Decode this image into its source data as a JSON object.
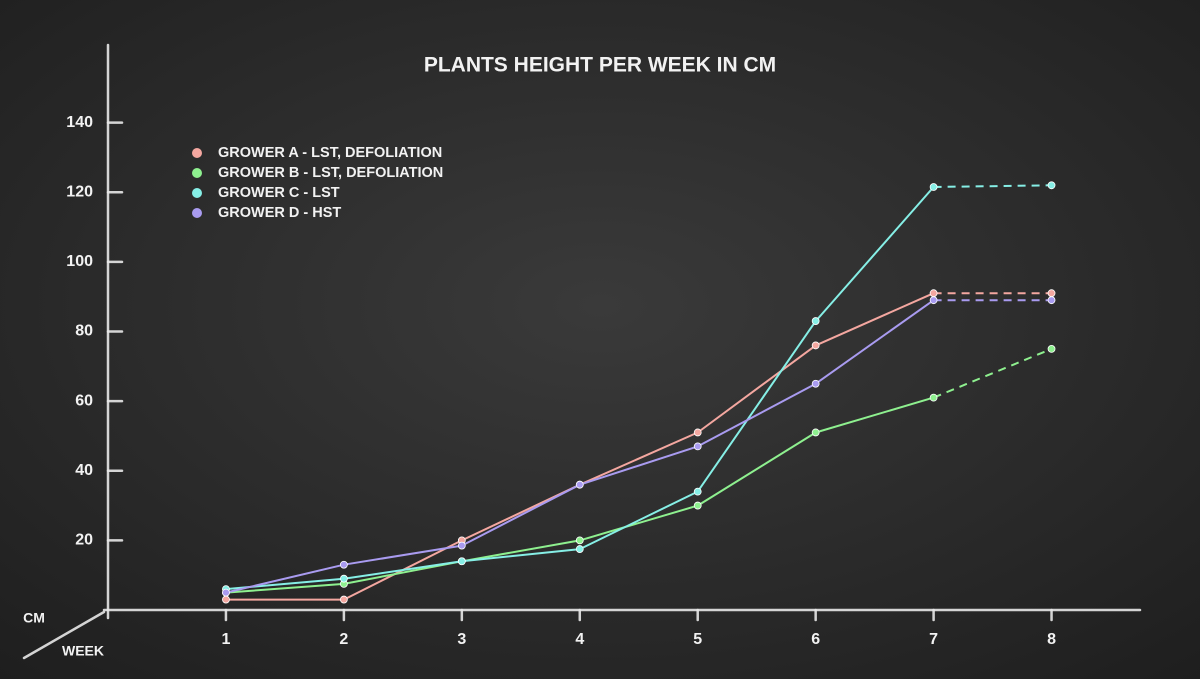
{
  "chart_data": {
    "type": "line",
    "title": "PLANTS HEIGHT PER WEEK IN CM",
    "y_label": "CM",
    "x_label": "WEEK",
    "x": [
      1,
      2,
      3,
      4,
      5,
      6,
      7,
      8
    ],
    "xlim": [
      0,
      8.75
    ],
    "xticks": [
      1,
      2,
      3,
      4,
      5,
      6,
      7,
      8
    ],
    "ylim": [
      0,
      160
    ],
    "yticks": [
      20,
      40,
      60,
      80,
      100,
      120,
      140
    ],
    "dashed_last_segment": true,
    "legend": "upper left",
    "series": [
      {
        "name": "GROWER A - LST, DEFOLIATION",
        "color": "#f4a7a0",
        "values": [
          3,
          3,
          20,
          36,
          51,
          76,
          91,
          91
        ]
      },
      {
        "name": "GROWER B - LST, DEFOLIATION",
        "color": "#8ef08f",
        "values": [
          5,
          7.5,
          14,
          20,
          30,
          51,
          61,
          75
        ]
      },
      {
        "name": "GROWER C - LST",
        "color": "#86efe6",
        "values": [
          6,
          9,
          14,
          17.5,
          34,
          83,
          121.5,
          122
        ]
      },
      {
        "name": "GROWER D - HST",
        "color": "#a99bf0",
        "values": [
          5,
          13,
          18.5,
          36,
          47,
          65,
          89,
          89
        ]
      }
    ]
  }
}
